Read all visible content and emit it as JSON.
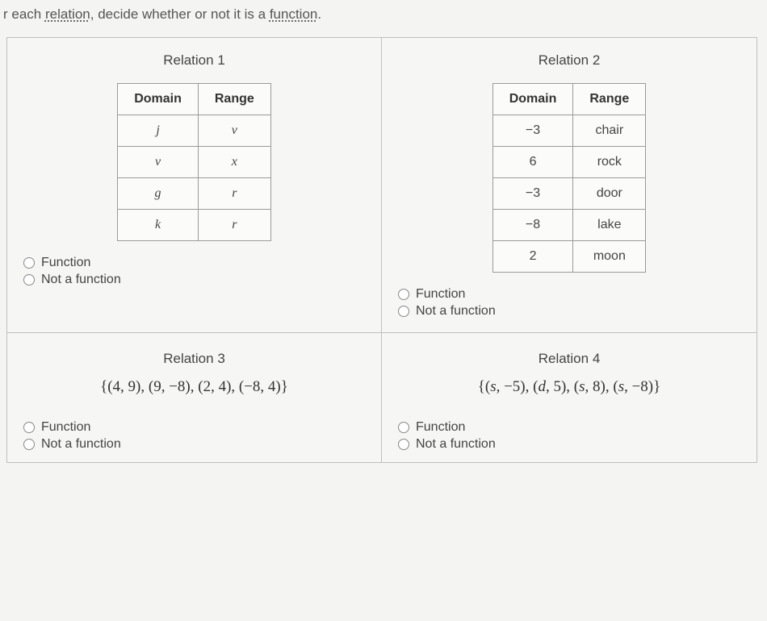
{
  "prompt": {
    "pre": "r each ",
    "u1": "relation",
    "mid": ", decide whether or not it is a ",
    "u2": "function",
    "post": "."
  },
  "options": {
    "func": "Function",
    "notfunc": "Not a function"
  },
  "headers": {
    "domain": "Domain",
    "range": "Range"
  },
  "r1": {
    "title": "Relation 1",
    "rows": [
      {
        "d": "j",
        "r": "v"
      },
      {
        "d": "v",
        "r": "x"
      },
      {
        "d": "g",
        "r": "r"
      },
      {
        "d": "k",
        "r": "r"
      }
    ]
  },
  "r2": {
    "title": "Relation 2",
    "rows": [
      {
        "d": "−3",
        "r": "chair"
      },
      {
        "d": "6",
        "r": "rock"
      },
      {
        "d": "−3",
        "r": "door"
      },
      {
        "d": "−8",
        "r": "lake"
      },
      {
        "d": "2",
        "r": "moon"
      }
    ]
  },
  "r3": {
    "title": "Relation 3",
    "set": "{(4, 9), (9, −8), (2, 4), (−8, 4)}"
  },
  "r4": {
    "title": "Relation 4",
    "set": "{(s, −5), (d, 5), (s, 8), (s, −8)}"
  }
}
